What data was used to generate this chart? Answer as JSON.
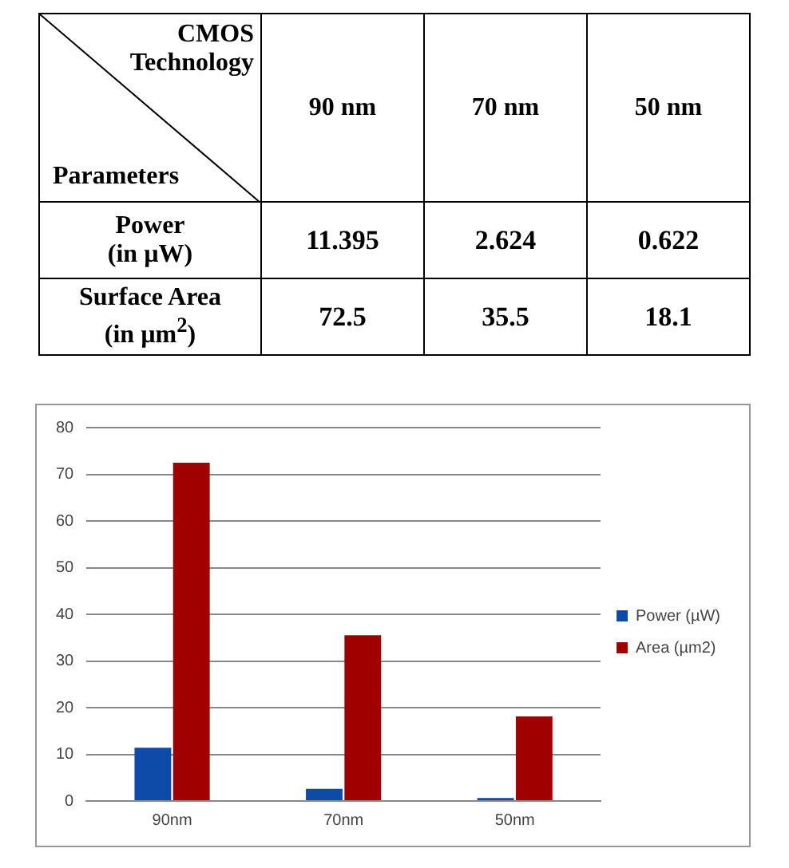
{
  "chart_data": {
    "type": "bar",
    "categories": [
      "90nm",
      "70nm",
      "50nm"
    ],
    "series": [
      {
        "name": "Power (µW)",
        "color": "#0e4aa8",
        "values": [
          11.395,
          2.624,
          0.622
        ]
      },
      {
        "name": "Area (µm2)",
        "color": "#a00000",
        "values": [
          72.5,
          35.5,
          18.1
        ]
      }
    ],
    "ylim": [
      0,
      80
    ],
    "yticks": [
      0,
      10,
      20,
      30,
      40,
      50,
      60,
      70,
      80
    ],
    "grid": "y",
    "legend": "right",
    "annotations": [
      "CMOS\nTechnology",
      "Parameters",
      "90 nm",
      "70 nm",
      "50 nm",
      "Power\n(in µW)",
      "11.395",
      "2.624",
      "0.622",
      "Surface Area\n(in µm$^{2}$)",
      "72.5",
      "35.5",
      "18.1"
    ]
  }
}
